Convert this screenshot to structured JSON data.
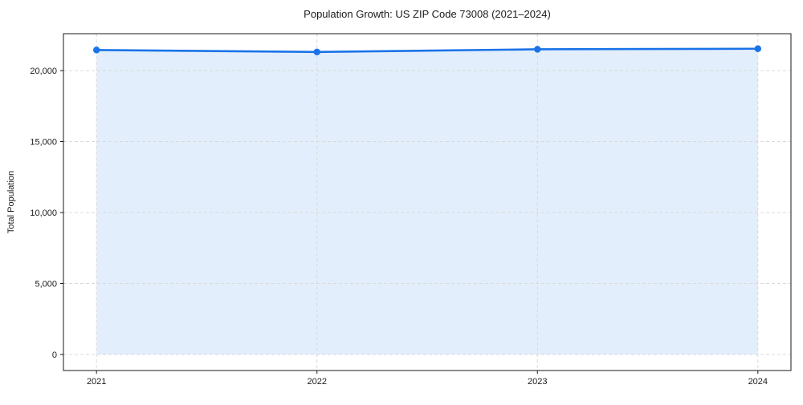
{
  "chart_data": {
    "type": "line",
    "title": "Population Growth: US ZIP Code 73008 (2021–2024)",
    "xlabel": "",
    "ylabel": "Total Population",
    "categories": [
      "2021",
      "2022",
      "2023",
      "2024"
    ],
    "x_numeric": [
      2021,
      2022,
      2023,
      2024
    ],
    "series": [
      {
        "name": "Total Population",
        "values": [
          21450,
          21310,
          21500,
          21540
        ]
      }
    ],
    "y_ticks": [
      0,
      5000,
      10000,
      15000,
      20000
    ],
    "y_tick_labels": [
      "0",
      "5,000",
      "10,000",
      "15,000",
      "20,000"
    ],
    "xlim": [
      2020.85,
      2024.15
    ],
    "ylim": [
      -1130,
      22600
    ],
    "grid": true,
    "grid_style": "dashed",
    "legend": "none",
    "area_fill": true,
    "marker": "circle",
    "colors": {
      "line": "#1a73e8",
      "marker": "#1a73e8",
      "fill": "#1a73e8",
      "fill_opacity": 0.12,
      "grid": "#d9d9d9",
      "axis": "#1a1a1a",
      "text": "#1a1a1a",
      "background": "#ffffff"
    }
  }
}
